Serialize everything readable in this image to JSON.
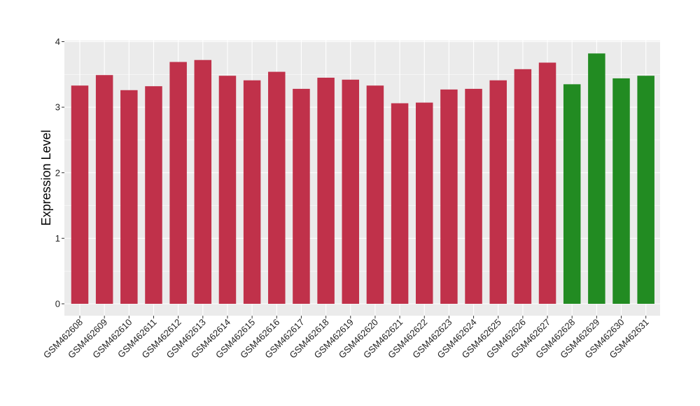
{
  "chart_data": {
    "type": "bar",
    "title": "",
    "xlabel": "",
    "ylabel": "Expression Level",
    "ylim": [
      0,
      4
    ],
    "yticks": [
      "0",
      "1",
      "2",
      "3",
      "4"
    ],
    "grid": true,
    "legend": "none",
    "categories": [
      "GSM462608",
      "GSM462609",
      "GSM462610",
      "GSM462611",
      "GSM462612",
      "GSM462613",
      "GSM462614",
      "GSM462615",
      "GSM462616",
      "GSM462617",
      "GSM462618",
      "GSM462619",
      "GSM462620",
      "GSM462621",
      "GSM462622",
      "GSM462623",
      "GSM462624",
      "GSM462625",
      "GSM462626",
      "GSM462627",
      "GSM462628",
      "GSM462629",
      "GSM462630",
      "GSM462631"
    ],
    "values": [
      3.33,
      3.49,
      3.26,
      3.32,
      3.69,
      3.72,
      3.48,
      3.41,
      3.54,
      3.28,
      3.45,
      3.42,
      3.33,
      3.06,
      3.07,
      3.27,
      3.28,
      3.41,
      3.58,
      3.68,
      3.35,
      3.82,
      3.44,
      3.48
    ],
    "bar_colors": [
      "#c0314a",
      "#c0314a",
      "#c0314a",
      "#c0314a",
      "#c0314a",
      "#c0314a",
      "#c0314a",
      "#c0314a",
      "#c0314a",
      "#c0314a",
      "#c0314a",
      "#c0314a",
      "#c0314a",
      "#c0314a",
      "#c0314a",
      "#c0314a",
      "#c0314a",
      "#c0314a",
      "#c0314a",
      "#c0314a",
      "#228b22",
      "#228b22",
      "#228b22",
      "#228b22"
    ],
    "panel_background": "#ebebeb",
    "grid_color": "#ffffff"
  }
}
